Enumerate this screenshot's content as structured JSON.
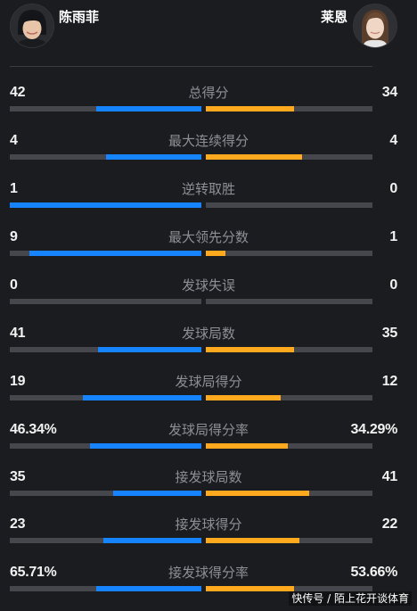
{
  "players": {
    "left": {
      "name": "陈雨菲"
    },
    "right": {
      "name": "莱恩"
    }
  },
  "colors": {
    "left_bar": "#1684ff",
    "right_bar": "#ffaa1e",
    "track": "#45474d"
  },
  "stats": [
    {
      "label": "总得分",
      "left": "42",
      "right": "34",
      "left_frac": 0.55,
      "right_frac": 0.53
    },
    {
      "label": "最大连续得分",
      "left": "4",
      "right": "4",
      "left_frac": 0.5,
      "right_frac": 0.58
    },
    {
      "label": "逆转取胜",
      "left": "1",
      "right": "0",
      "left_frac": 1.0,
      "right_frac": 0.0
    },
    {
      "label": "最大领先分数",
      "left": "9",
      "right": "1",
      "left_frac": 0.9,
      "right_frac": 0.12
    },
    {
      "label": "发球失误",
      "left": "0",
      "right": "0",
      "left_frac": 0.0,
      "right_frac": 0.0
    },
    {
      "label": "发球局数",
      "left": "41",
      "right": "35",
      "left_frac": 0.54,
      "right_frac": 0.53
    },
    {
      "label": "发球局得分",
      "left": "19",
      "right": "12",
      "left_frac": 0.62,
      "right_frac": 0.45
    },
    {
      "label": "发球局得分率",
      "left": "46.34%",
      "right": "34.29%",
      "left_frac": 0.58,
      "right_frac": 0.49
    },
    {
      "label": "接发球局数",
      "left": "35",
      "right": "41",
      "left_frac": 0.46,
      "right_frac": 0.62
    },
    {
      "label": "接发球得分",
      "left": "23",
      "right": "22",
      "left_frac": 0.51,
      "right_frac": 0.56
    },
    {
      "label": "接发球得分率",
      "left": "65.71%",
      "right": "53.66%",
      "left_frac": 0.55,
      "right_frac": 0.53
    }
  ],
  "watermark": "快传号 / 陌上花开谈体育"
}
